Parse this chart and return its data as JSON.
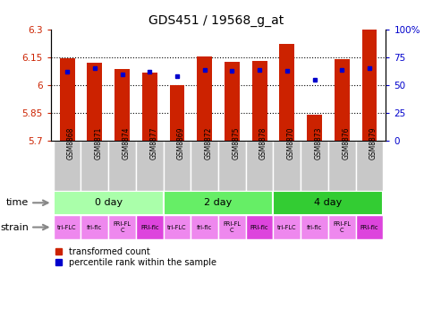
{
  "title": "GDS451 / 19568_g_at",
  "samples": [
    "GSM8868",
    "GSM8871",
    "GSM8874",
    "GSM8877",
    "GSM8869",
    "GSM8872",
    "GSM8875",
    "GSM8878",
    "GSM8870",
    "GSM8873",
    "GSM8876",
    "GSM8879"
  ],
  "red_values": [
    6.145,
    6.12,
    6.085,
    6.065,
    6.0,
    6.155,
    6.125,
    6.13,
    6.22,
    5.84,
    6.14,
    6.3
  ],
  "blue_values": [
    62,
    65,
    60,
    62,
    58,
    64,
    63,
    64,
    63,
    55,
    64,
    65
  ],
  "ylim_left": [
    5.7,
    6.3
  ],
  "ylim_right": [
    0,
    100
  ],
  "yticks_left": [
    5.7,
    5.85,
    6.0,
    6.15,
    6.3
  ],
  "yticks_right": [
    0,
    25,
    50,
    75,
    100
  ],
  "ytick_labels_left": [
    "5.7",
    "5.85",
    "6",
    "6.15",
    "6.3"
  ],
  "ytick_labels_right": [
    "0",
    "25",
    "50",
    "75",
    "100%"
  ],
  "time_groups": [
    {
      "label": "0 day",
      "start": 0,
      "end": 4,
      "color": "#AAFFAA"
    },
    {
      "label": "2 day",
      "start": 4,
      "end": 8,
      "color": "#66EE66"
    },
    {
      "label": "4 day",
      "start": 8,
      "end": 12,
      "color": "#33CC33"
    }
  ],
  "strain_labels": [
    "tri-FLC",
    "fri-flc",
    "FRI-FL\nC",
    "FRI-flc",
    "tri-FLC",
    "fri-flc",
    "FRI-FL\nC",
    "FRI-flc",
    "tri-FLC",
    "fri-flc",
    "FRI-FL\nC",
    "FRI-flc"
  ],
  "strain_color_light": "#EE88EE",
  "strain_color_dark": "#DD44DD",
  "strain_color_indices": [
    0,
    0,
    0,
    1,
    0,
    0,
    0,
    1,
    0,
    0,
    0,
    1
  ],
  "bar_color": "#CC2200",
  "dot_color": "#0000CC",
  "bar_bottom": 5.7,
  "bar_width": 0.55,
  "legend_red": "transformed count",
  "legend_blue": "percentile rank within the sample",
  "time_label": "time",
  "strain_label": "strain",
  "bg_color": "#FFFFFF",
  "plot_bg": "#FFFFFF",
  "tick_color_left": "#CC2200",
  "tick_color_right": "#0000CC",
  "xtick_bg": "#C8C8C8"
}
